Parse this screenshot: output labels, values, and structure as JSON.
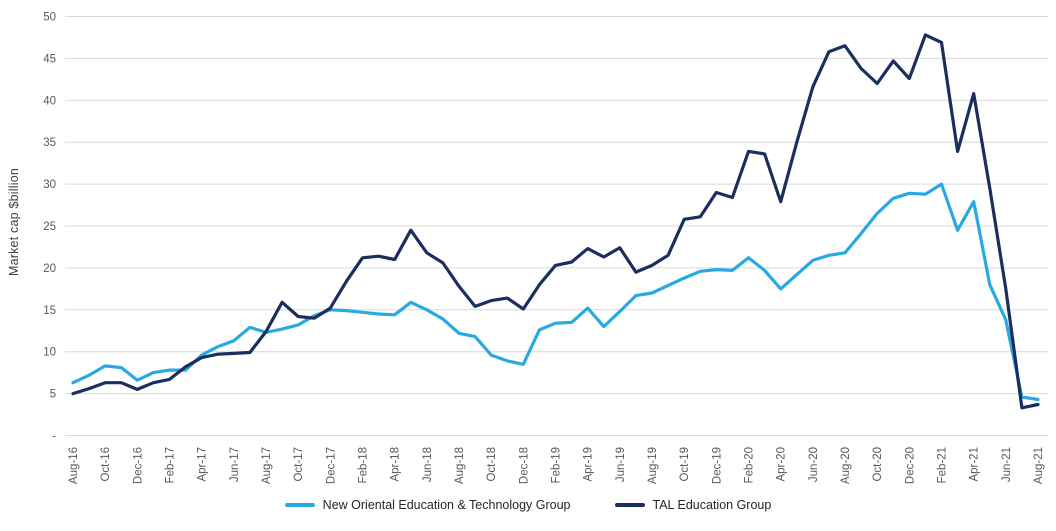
{
  "chart_data": {
    "type": "line",
    "title": "",
    "ylabel": "Market cap $billion",
    "ylim": [
      0,
      50
    ],
    "ytick_step": 5,
    "ytick_labels": [
      "-",
      "5",
      "10",
      "15",
      "20",
      "25",
      "30",
      "35",
      "40",
      "45",
      "50"
    ],
    "grid": "horizontal",
    "legend_position": "bottom-center",
    "xtick_every": 2,
    "x": [
      "Aug-16",
      "Sep-16",
      "Oct-16",
      "Nov-16",
      "Dec-16",
      "Jan-17",
      "Feb-17",
      "Mar-17",
      "Apr-17",
      "May-17",
      "Jun-17",
      "Jul-17",
      "Aug-17",
      "Sep-17",
      "Oct-17",
      "Nov-17",
      "Dec-17",
      "Jan-18",
      "Feb-18",
      "Mar-18",
      "Apr-18",
      "May-18",
      "Jun-18",
      "Jul-18",
      "Aug-18",
      "Sep-18",
      "Oct-18",
      "Nov-18",
      "Dec-18",
      "Jan-19",
      "Feb-19",
      "Mar-19",
      "Apr-19",
      "May-19",
      "Jun-19",
      "Jul-19",
      "Aug-19",
      "Sep-19",
      "Oct-19",
      "Nov-19",
      "Dec-19",
      "Jan-20",
      "Feb-20",
      "Mar-20",
      "Apr-20",
      "May-20",
      "Jun-20",
      "Jul-20",
      "Aug-20",
      "Sep-20",
      "Oct-20",
      "Nov-20",
      "Dec-20",
      "Jan-21",
      "Feb-21",
      "Mar-21",
      "Apr-21",
      "May-21",
      "Jun-21",
      "Jul-21",
      "Aug-21"
    ],
    "series": [
      {
        "name": "New Oriental Education & Technology Group",
        "color": "#29A9E1",
        "values": [
          6.3,
          7.2,
          8.3,
          8.1,
          6.6,
          7.5,
          7.8,
          7.8,
          9.6,
          10.6,
          11.3,
          12.9,
          12.3,
          12.7,
          13.2,
          14.3,
          15.0,
          14.9,
          14.7,
          14.5,
          14.4,
          15.9,
          15.0,
          13.9,
          12.2,
          11.8,
          9.6,
          8.9,
          8.5,
          12.6,
          13.4,
          13.5,
          15.2,
          13.0,
          14.8,
          16.7,
          17.0,
          17.9,
          18.8,
          19.6,
          19.8,
          19.7,
          21.2,
          19.7,
          17.5,
          19.2,
          20.9,
          21.5,
          21.8,
          24.1,
          26.5,
          28.3,
          28.9,
          28.8,
          30.0,
          24.5,
          27.9,
          18.0,
          13.8,
          4.6,
          4.3
        ]
      },
      {
        "name": "TAL Education Group",
        "color": "#1B2F5E",
        "values": [
          5.0,
          5.6,
          6.3,
          6.3,
          5.5,
          6.3,
          6.7,
          8.2,
          9.3,
          9.7,
          9.8,
          9.9,
          12.4,
          15.9,
          14.2,
          14.0,
          15.2,
          18.4,
          21.2,
          21.4,
          21.0,
          24.5,
          21.8,
          20.6,
          17.8,
          15.4,
          16.1,
          16.4,
          15.1,
          18.0,
          20.3,
          20.7,
          22.3,
          21.3,
          22.4,
          19.5,
          20.3,
          21.5,
          25.8,
          26.1,
          29.0,
          28.4,
          33.9,
          33.6,
          27.9,
          35.0,
          41.6,
          45.8,
          46.5,
          43.8,
          42.0,
          44.7,
          42.6,
          47.8,
          46.9,
          33.9,
          40.8,
          29.5,
          17.5,
          3.3,
          3.7
        ]
      }
    ]
  },
  "style": {
    "grid_color": "#D9D9D9",
    "tick_label_color": "#595959",
    "line_width": 3.2
  }
}
